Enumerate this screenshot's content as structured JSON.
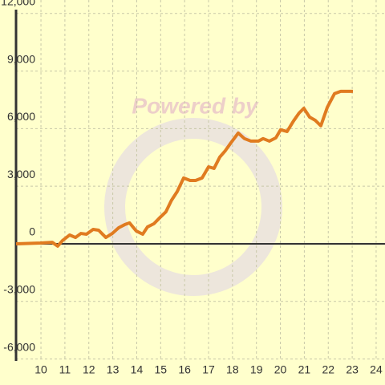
{
  "chart_data": {
    "type": "line",
    "watermark": "Powered by",
    "x": [
      8.96,
      9.97,
      10.47,
      10.7,
      10.9,
      11.2,
      11.44,
      11.67,
      11.9,
      12.18,
      12.41,
      12.71,
      12.98,
      13.25,
      13.5,
      13.7,
      13.98,
      14.25,
      14.45,
      14.72,
      14.98,
      15.22,
      15.45,
      15.69,
      15.96,
      16.23,
      16.46,
      16.73,
      17.0,
      17.23,
      17.47,
      17.7,
      17.94,
      18.24,
      18.5,
      18.77,
      19.08,
      19.28,
      19.54,
      19.81,
      20.01,
      20.28,
      20.55,
      20.78,
      20.98,
      21.22,
      21.45,
      21.69,
      21.96,
      22.26,
      22.52,
      23.03
    ],
    "series": [
      {
        "color": "#e07b20",
        "values": [
          0,
          40,
          80,
          -120,
          170,
          460,
          330,
          540,
          500,
          750,
          710,
          330,
          540,
          840,
          1000,
          1090,
          670,
          500,
          880,
          1050,
          1380,
          1670,
          2260,
          2720,
          3430,
          3300,
          3300,
          3430,
          4010,
          3930,
          4520,
          4850,
          5270,
          5770,
          5480,
          5350,
          5350,
          5480,
          5350,
          5520,
          5940,
          5850,
          6400,
          6810,
          7060,
          6600,
          6440,
          6150,
          7110,
          7820,
          7940,
          7940
        ]
      }
    ],
    "xlim": [
      8.96,
      24.37
    ],
    "ylim": [
      -6100,
      12700
    ],
    "xticks": [
      10,
      11,
      12,
      13,
      14,
      15,
      16,
      17,
      18,
      19,
      20,
      21,
      22,
      23,
      24
    ],
    "yticks": [
      {
        "value": -6000,
        "label": "-6,000"
      },
      {
        "value": -3000,
        "label": "-3,000"
      },
      0,
      {
        "value": 3000,
        "label": "3,000"
      },
      {
        "value": 6000,
        "label": "6,000"
      },
      {
        "value": 9000,
        "label": "9,000"
      },
      {
        "value": 12000,
        "label": "12,000"
      }
    ],
    "grid": true
  }
}
